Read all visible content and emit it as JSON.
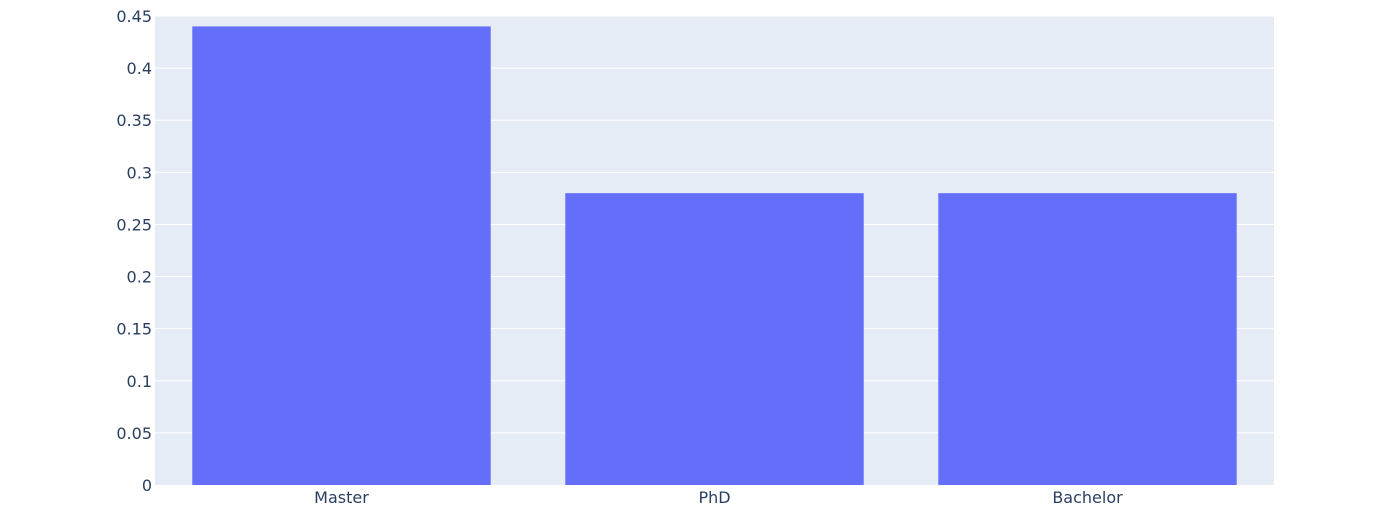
{
  "chart_data": {
    "type": "bar",
    "categories": [
      "Master",
      "PhD",
      "Bachelor"
    ],
    "values": [
      0.44,
      0.28,
      0.28
    ],
    "ylim": [
      0,
      0.45
    ],
    "yticks": [
      0,
      0.05,
      0.1,
      0.15,
      0.2,
      0.25,
      0.3,
      0.35,
      0.4,
      0.45
    ],
    "ytick_labels": [
      "0",
      "0.05",
      "0.1",
      "0.15",
      "0.2",
      "0.25",
      "0.3",
      "0.35",
      "0.4",
      "0.45"
    ],
    "grid": true,
    "colors": {
      "bar": "#636efa",
      "plot_background": "#e5ecf6",
      "gridline": "#ffffff",
      "text": "#2a3f5f"
    }
  }
}
